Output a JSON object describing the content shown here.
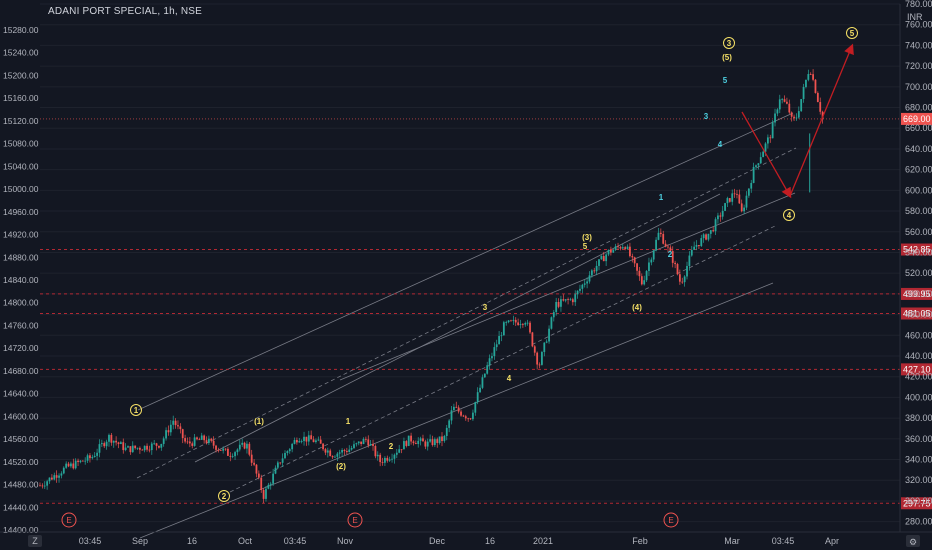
{
  "header": {
    "title": "ADANI PORT SPECIAL, 1h, NSE"
  },
  "currency": "INR",
  "colors": {
    "background": "#131722",
    "up": "#26a69a",
    "down": "#ef5350",
    "wave_label": "#f5e066",
    "level_line": "#b22833",
    "arrow": "#c21d22",
    "channel": "#787b86"
  },
  "icons": {
    "earnings": "E",
    "zoom_left": "Z",
    "settings": "gear-icon"
  },
  "chart_data": {
    "type": "candlestick",
    "symbol": "ADANI PORT SPECIAL",
    "interval": "1h",
    "exchange": "NSE",
    "left_axis": {
      "ticks": [
        "15280.00",
        "15240.00",
        "15200.00",
        "15160.00",
        "15120.00",
        "15080.00",
        "15040.00",
        "15000.00",
        "14960.00",
        "14920.00",
        "14880.00",
        "14840.00",
        "14800.00",
        "14760.00",
        "14720.00",
        "14680.00",
        "14640.00",
        "14600.00",
        "14560.00",
        "14520.00",
        "14480.00",
        "14440.00",
        "14400.00"
      ]
    },
    "right_axis": {
      "range": [
        270,
        780
      ],
      "ticks": [
        "780.00",
        "760.00",
        "740.00",
        "720.00",
        "700.00",
        "680.00",
        "660.00",
        "640.00",
        "620.00",
        "600.00",
        "580.00",
        "560.00",
        "540.00",
        "520.00",
        "500.00",
        "480.00",
        "460.00",
        "440.00",
        "420.00",
        "400.00",
        "380.00",
        "360.00",
        "340.00",
        "320.00",
        "300.00",
        "280.00"
      ]
    },
    "x_ticks": [
      "03:45",
      "Sep",
      "16",
      "Oct",
      "03:45",
      "Nov",
      "Dec",
      "16",
      "2021",
      "Feb",
      "Mar",
      "03:45",
      "Apr"
    ],
    "current_price": "669.00",
    "levels": [
      {
        "value": 542.85,
        "label": "542.85"
      },
      {
        "value": 499.95,
        "label": "499.95"
      },
      {
        "value": 481.05,
        "label": "481.05"
      },
      {
        "value": 427.1,
        "label": "427.10"
      },
      {
        "value": 297.75,
        "label": "297.75"
      }
    ],
    "wave_labels": [
      {
        "text": "1",
        "circled": true,
        "price": 385
      },
      {
        "text": "2",
        "circled": true,
        "price": 300
      },
      {
        "text": "(1)",
        "circled": false,
        "price": 370
      },
      {
        "text": "1",
        "circled": false,
        "price": 368
      },
      {
        "text": "(2)",
        "circled": false,
        "price": 325
      },
      {
        "text": "2",
        "circled": false,
        "price": 350
      },
      {
        "text": "3",
        "circled": false,
        "price": 480
      },
      {
        "text": "4",
        "circled": false,
        "price": 420
      },
      {
        "text": "(3)",
        "circled": false,
        "price": 560
      },
      {
        "text": "5",
        "circled": false,
        "price": 552
      },
      {
        "text": "(4)",
        "circled": false,
        "price": 488
      },
      {
        "text": "1",
        "circled": false,
        "price": 600
      },
      {
        "text": "2",
        "circled": false,
        "price": 541
      },
      {
        "text": "3",
        "circled": false,
        "price": 680
      },
      {
        "text": "4",
        "circled": false,
        "price": 650
      },
      {
        "text": "5",
        "circled": false,
        "price": 715
      },
      {
        "text": "(5)",
        "circled": false,
        "price": 740
      },
      {
        "text": "3",
        "circled": true,
        "price": 755
      },
      {
        "text": "4",
        "circled": true,
        "price": 585
      },
      {
        "text": "5",
        "circled": true,
        "price": 765
      }
    ],
    "earnings_markers": [
      "E",
      "E",
      "E"
    ],
    "price_path": [
      [
        0,
        315
      ],
      [
        0.03,
        332
      ],
      [
        0.06,
        342
      ],
      [
        0.08,
        362
      ],
      [
        0.1,
        350
      ],
      [
        0.12,
        352
      ],
      [
        0.14,
        355
      ],
      [
        0.155,
        378
      ],
      [
        0.17,
        355
      ],
      [
        0.19,
        360
      ],
      [
        0.22,
        345
      ],
      [
        0.24,
        355
      ],
      [
        0.26,
        305
      ],
      [
        0.28,
        340
      ],
      [
        0.3,
        362
      ],
      [
        0.32,
        358
      ],
      [
        0.34,
        345
      ],
      [
        0.36,
        350
      ],
      [
        0.38,
        360
      ],
      [
        0.395,
        338
      ],
      [
        0.41,
        345
      ],
      [
        0.43,
        360
      ],
      [
        0.45,
        355
      ],
      [
        0.47,
        360
      ],
      [
        0.48,
        390
      ],
      [
        0.5,
        380
      ],
      [
        0.52,
        430
      ],
      [
        0.54,
        470
      ],
      [
        0.565,
        475
      ],
      [
        0.58,
        430
      ],
      [
        0.6,
        490
      ],
      [
        0.62,
        495
      ],
      [
        0.64,
        520
      ],
      [
        0.66,
        540
      ],
      [
        0.68,
        548
      ],
      [
        0.7,
        510
      ],
      [
        0.72,
        560
      ],
      [
        0.735,
        535
      ],
      [
        0.745,
        510
      ],
      [
        0.76,
        545
      ],
      [
        0.78,
        560
      ],
      [
        0.8,
        590
      ],
      [
        0.81,
        600
      ],
      [
        0.815,
        575
      ],
      [
        0.83,
        620
      ],
      [
        0.85,
        655
      ],
      [
        0.86,
        690
      ],
      [
        0.87,
        680
      ],
      [
        0.875,
        665
      ],
      [
        0.88,
        672
      ],
      [
        0.895,
        720
      ],
      [
        0.91,
        669
      ]
    ]
  }
}
